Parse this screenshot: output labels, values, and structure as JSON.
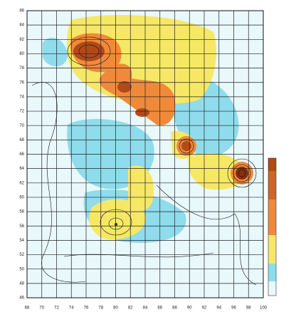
{
  "chart_data": {
    "type": "contour",
    "xlim": [
      68,
      100
    ],
    "ylim": [
      46,
      86
    ],
    "xticks": [
      68,
      70,
      72,
      74,
      76,
      78,
      80,
      82,
      84,
      86,
      88,
      90,
      92,
      94,
      96,
      98,
      100
    ],
    "yticks": [
      46,
      48,
      50,
      52,
      54,
      56,
      58,
      60,
      62,
      64,
      66,
      68,
      70,
      72,
      74,
      76,
      78,
      80,
      82,
      84,
      86
    ],
    "grid": true
  }
}
